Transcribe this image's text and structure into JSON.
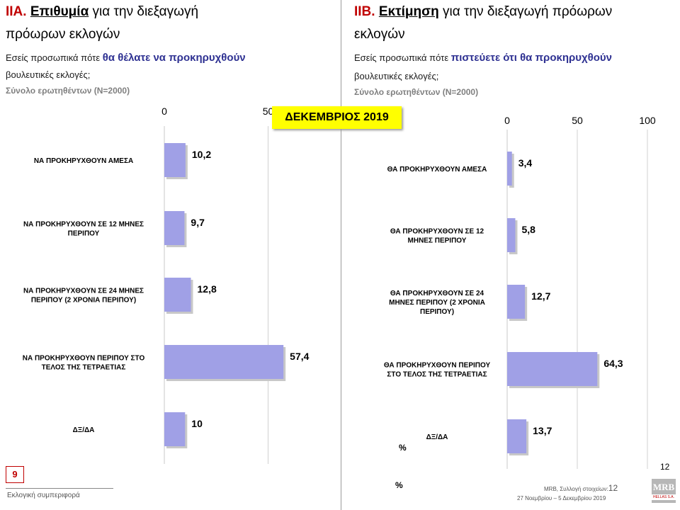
{
  "left": {
    "prefix": "ΙΙΑ.",
    "keyword": "Επιθυμία",
    "rest": " για την διεξαγωγή",
    "line2": "πρόωρων εκλογών",
    "question_a": "Εσείς προσωπικά πότε ",
    "question_hl": "θα θέλατε να προκηρυχθούν",
    "question_b": "βουλευτικές εκλογές;",
    "base": "Σύνολο ερωτηθέντων (N=2000)"
  },
  "right": {
    "prefix": "ΙΙΒ.",
    "keyword": "Εκτίμηση",
    "rest": " για την διεξαγωγή πρόωρων",
    "line2": "εκλογών",
    "question_a": "Εσείς προσωπικά πότε ",
    "question_hl": "πιστεύετε ότι θα προκηρυχθούν",
    "question_b": "βουλευτικές εκλογές;",
    "base": "Σύνολο ερωτηθέντων (N=2000)"
  },
  "month_label": "ΔΕΚΕΜΒΡΙΟΣ 2019",
  "page_box": "9",
  "percent_symbol": "%",
  "page_num": "12",
  "footer": {
    "left": "Εκλογική συμπεριφορά",
    "right_line1": "MRB, Συλλογή στοιχείων:",
    "right_line1_num": "12",
    "right_line2": "27 Νοεμβρίου – 5 Δεκεμβρίου 2019"
  },
  "logo": {
    "name": "MRB",
    "sub": "HELLAS S.A."
  },
  "colors": {
    "bar": "#a0a0e6",
    "accent_red": "#c00000",
    "highlight_blue": "#2e3192",
    "month_bg": "#ffff00"
  },
  "chart_data": [
    {
      "type": "bar",
      "orientation": "horizontal",
      "categories": [
        "ΝΑ ΠΡΟΚΗΡΥΧΘΟΥΝ ΑΜΕΣΑ",
        "ΝΑ ΠΡΟΚΗΡΥΧΘΟΥΝ ΣΕ 12 ΜΗΝΕΣ\nΠΕΡΙΠΟΥ",
        "ΝΑ ΠΡΟΚΗΡΥΧΘΟΥΝ ΣΕ 24 ΜΗΝΕΣ\nΠΕΡΙΠΟΥ (2 ΧΡΟΝΙΑ ΠΕΡΙΠΟΥ)",
        "ΝΑ ΠΡΟΚΗΡΥΧΘΟΥΝ ΠΕΡΙΠΟΥ ΣΤΟ\nΤΕΛΟΣ ΤΗΣ ΤΕΤΡΑΕΤΙΑΣ",
        "ΔΞ/ΔΑ"
      ],
      "values": [
        10.2,
        9.7,
        12.8,
        57.4,
        10
      ],
      "value_labels": [
        "10,2",
        "9,7",
        "12,8",
        "57,4",
        "10"
      ],
      "ticks": [
        "0",
        "50"
      ],
      "xlim": [
        0,
        100
      ],
      "grid": true
    },
    {
      "type": "bar",
      "orientation": "horizontal",
      "categories": [
        "ΘΑ ΠΡΟΚΗΡΥΧΘΟΥΝ ΑΜΕΣΑ",
        "ΘΑ ΠΡΟΚΗΡΥΧΘΟΥΝ ΣΕ 12\nΜΗΝΕΣ ΠΕΡΙΠΟΥ",
        "ΘΑ ΠΡΟΚΗΡΥΧΘΟΥΝ ΣΕ 24\nΜΗΝΕΣ ΠΕΡΙΠΟΥ (2 ΧΡΟΝΙΑ\nΠΕΡΙΠΟΥ)",
        "ΘΑ ΠΡΟΚΗΡΥΧΘΟΥΝ ΠΕΡΙΠΟΥ\nΣΤΟ ΤΕΛΟΣ ΤΗΣ ΤΕΤΡΑΕΤΙΑΣ",
        "ΔΞ/ΔΑ"
      ],
      "values": [
        3.4,
        5.8,
        12.7,
        64.3,
        13.7
      ],
      "value_labels": [
        "3,4",
        "5,8",
        "12,7",
        "64,3",
        "13,7"
      ],
      "ticks": [
        "0",
        "50",
        "100"
      ],
      "xlim": [
        0,
        100
      ],
      "grid": true
    }
  ]
}
